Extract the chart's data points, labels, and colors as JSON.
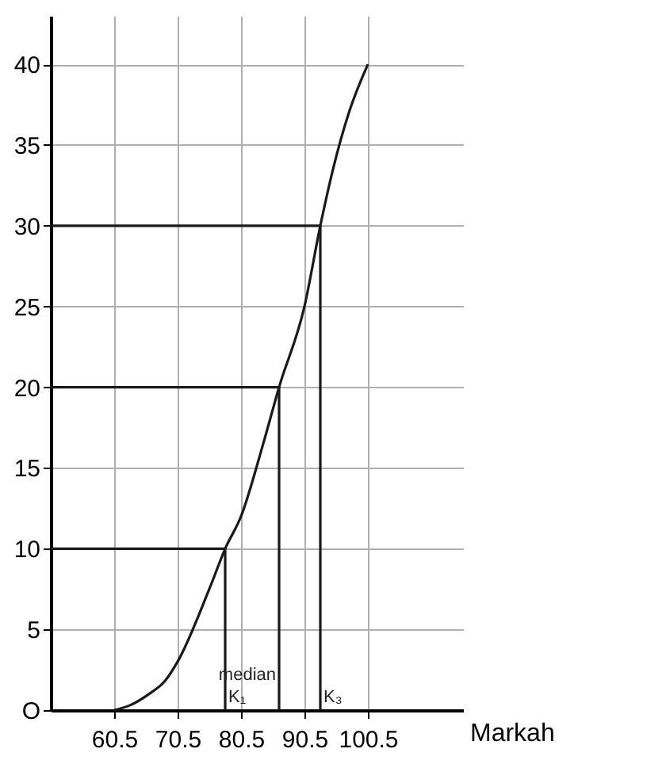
{
  "chart_data": {
    "type": "line",
    "xlabel": "Markah",
    "series": [
      {
        "color": "#1a1a1a",
        "x": [
          60.5,
          63,
          66,
          68.5,
          70.5,
          75.5,
          78,
          80.5,
          84,
          86.5,
          90.5,
          93,
          95,
          97.5,
          100.5
        ],
        "values": [
          0,
          0.3,
          1,
          1.8,
          3,
          7.5,
          10,
          12,
          16.5,
          20,
          25,
          30,
          33.5,
          37,
          40
        ]
      },
      {
        "type": "line",
        "color": "#1a1a1a",
        "x": [
          50.5,
          78,
          78
        ],
        "values": [
          10,
          10,
          0
        ]
      },
      {
        "type": "line",
        "color": "#1a1a1a",
        "x": [
          50.5,
          86.5,
          86.5
        ],
        "values": [
          20,
          20,
          0
        ]
      },
      {
        "type": "line",
        "color": "#1a1a1a",
        "x": [
          50.5,
          93,
          93
        ],
        "values": [
          30,
          30,
          0
        ]
      }
    ],
    "annotations": [
      {
        "text": "K₁",
        "x": 78,
        "y": 0
      },
      {
        "text": "median",
        "x": 86.5,
        "y": 0
      },
      {
        "text": "K₃",
        "x": 93,
        "y": 0
      }
    ],
    "xlim": [
      50.5,
      115.5
    ],
    "ylim": [
      0,
      43
    ],
    "xticks": [
      {
        "value": 60.5,
        "label": "60.5"
      },
      {
        "value": 70.5,
        "label": "70.5"
      },
      {
        "value": 80.5,
        "label": "80.5"
      },
      {
        "value": 90.5,
        "label": "90.5"
      },
      {
        "value": 100.5,
        "label": "100.5"
      }
    ],
    "yticks": [
      {
        "value": 0,
        "label": "O"
      },
      5,
      10,
      15,
      20,
      25,
      30,
      35,
      40
    ],
    "grid": true,
    "marker": "none",
    "line_style": "solid"
  }
}
